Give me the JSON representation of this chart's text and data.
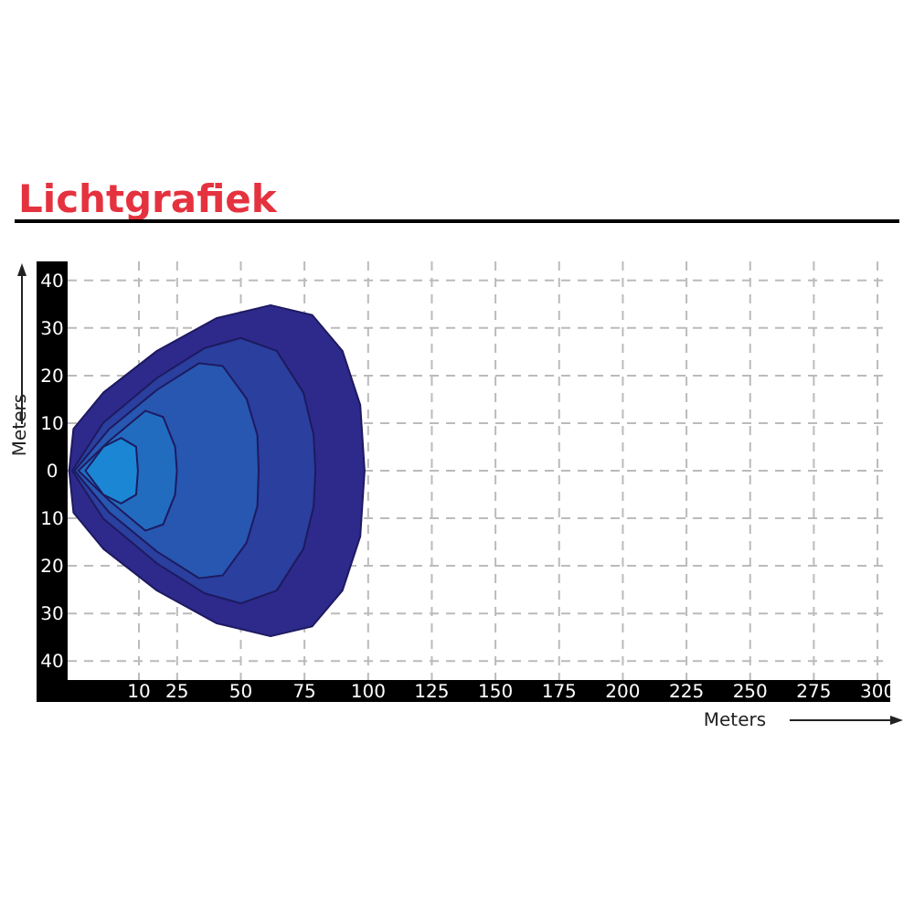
{
  "chart_data": {
    "type": "area",
    "title": "Lichtgrafiek",
    "xlabel": "Meters",
    "ylabel": "Meters",
    "grid": true,
    "xlim": [
      -18,
      305
    ],
    "ylim": [
      -44,
      44
    ],
    "xticks": [
      10,
      25,
      50,
      75,
      100,
      125,
      150,
      175,
      200,
      225,
      250,
      275,
      300
    ],
    "yticks": [
      {
        "value": -40,
        "label": "40"
      },
      {
        "value": -30,
        "label": "30"
      },
      {
        "value": -20,
        "label": "20"
      },
      {
        "value": -10,
        "label": "10"
      },
      0,
      10,
      20,
      30,
      40
    ],
    "series": [
      {
        "color": "#2e2a8c",
        "x": [
          -17.4,
          -15.7,
          -4,
          17.1,
          40.6,
          61.7,
          78.1,
          89.9,
          96.9,
          98.6,
          96.9,
          89.9,
          78.1,
          61.7,
          40.6,
          17.1,
          -4,
          -15.7
        ],
        "values": [
          0,
          8.8,
          16.4,
          25.2,
          32.1,
          34.8,
          32.7,
          25.2,
          13.8,
          0,
          -13.8,
          -25.2,
          -32.7,
          -34.8,
          -32.1,
          -25.2,
          -16.4,
          -8.8
        ]
      },
      {
        "color": "#2a3f9e",
        "x": [
          -16.2,
          -4,
          17.1,
          35.9,
          50,
          64.1,
          74.6,
          78.6,
          79.3,
          78.6,
          74.6,
          64.1,
          50,
          35.9,
          17.1,
          -4
        ],
        "values": [
          0,
          10.1,
          19.5,
          25.8,
          27.9,
          25.2,
          16.4,
          7.5,
          0,
          -7.5,
          -16.4,
          -25.2,
          -27.9,
          -25.8,
          -19.5,
          -10.1
        ]
      },
      {
        "color": "#2757b0",
        "x": [
          -15.3,
          -1.6,
          17.1,
          33.6,
          42.9,
          52.3,
          56.5,
          57,
          56.5,
          52.3,
          42.9,
          33.6,
          17.1,
          -1.6
        ],
        "values": [
          0,
          8.8,
          17,
          22.6,
          22,
          15.1,
          7.5,
          0,
          -7.5,
          -15.1,
          -22,
          -22.6,
          -17,
          -8.8
        ]
      },
      {
        "color": "#226cc0",
        "x": [
          -13.8,
          -1.6,
          12.5,
          19.5,
          24.2,
          24.9,
          24.2,
          19.5,
          12.5,
          -1.6
        ],
        "values": [
          0,
          6.3,
          12.6,
          11.3,
          5,
          0,
          -5,
          -11.3,
          -12.6,
          -6.3
        ]
      },
      {
        "color": "#1b86d4",
        "x": [
          -11,
          -4,
          3,
          8.9,
          9.6,
          8.9,
          3,
          -4
        ],
        "values": [
          0,
          5,
          6.9,
          5,
          0,
          -5,
          -6.9,
          -5
        ]
      }
    ]
  }
}
